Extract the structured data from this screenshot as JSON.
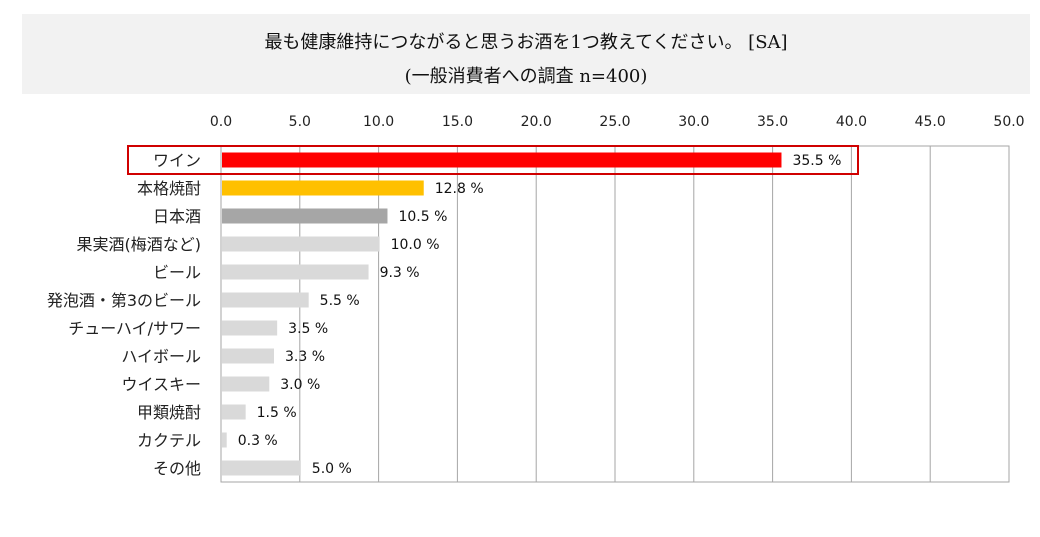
{
  "chart_data": {
    "type": "bar",
    "orientation": "horizontal",
    "title": "最も健康維持につながると思うお酒を1つ教えてください。 [SA]",
    "subtitle": "(一般消費者への調査 n=400)",
    "xlim": [
      0,
      50
    ],
    "ticks": [
      "0.0",
      "5.0",
      "10.0",
      "15.0",
      "20.0",
      "25.0",
      "30.0",
      "35.0",
      "40.0",
      "45.0",
      "50.0"
    ],
    "tick_values": [
      0,
      5,
      10,
      15,
      20,
      25,
      30,
      35,
      40,
      45,
      50
    ],
    "grid": true,
    "value_suffix": " %",
    "highlighted_category": "ワイン",
    "categories": [
      "ワイン",
      "本格焼酎",
      "日本酒",
      "果実酒(梅酒など)",
      "ビール",
      "発泡酒・第3のビール",
      "チューハイ/サワー",
      "ハイボール",
      "ウイスキー",
      "甲類焼酎",
      "カクテル",
      "その他"
    ],
    "values": [
      35.5,
      12.8,
      10.5,
      10.0,
      9.3,
      5.5,
      3.5,
      3.3,
      3.0,
      1.5,
      0.3,
      5.0
    ],
    "colors": [
      "#ff0000",
      "#ffc000",
      "#a6a6a6",
      "#d9d9d9",
      "#d9d9d9",
      "#d9d9d9",
      "#d9d9d9",
      "#d9d9d9",
      "#d9d9d9",
      "#d9d9d9",
      "#d9d9d9",
      "#d9d9d9"
    ],
    "highlight_color": "#d00000",
    "grid_color": "#a6a6a6"
  }
}
